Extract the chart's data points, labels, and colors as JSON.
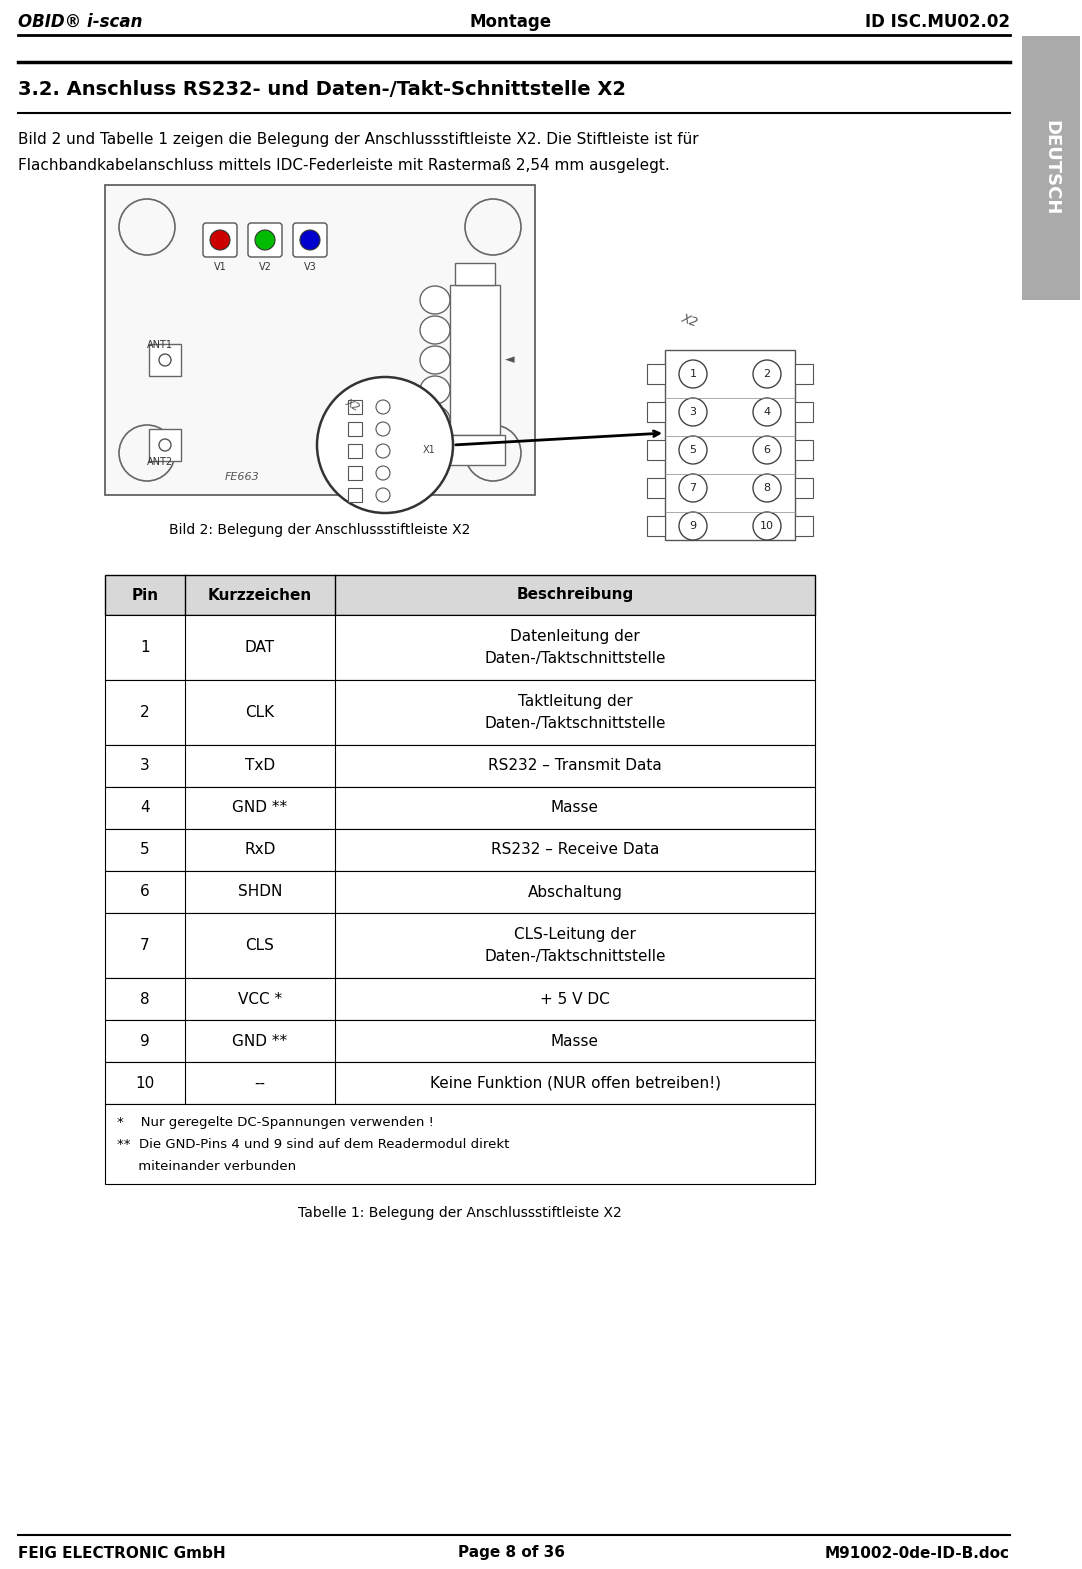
{
  "header_left": "OBID® i-scan",
  "header_center": "Montage",
  "header_right": "ID ISC.MU02.02",
  "footer_left": "FEIG ELECTRONIC GmbH",
  "footer_center": "Page 8 of 36",
  "footer_right": "M91002-0de-ID-B.doc",
  "sidebar_text": "DEUTSCH",
  "sidebar_color": "#aaaaaa",
  "sidebar_text_color": "#ffffff",
  "section_title": "3.2. Anschluss RS232- und Daten-/Takt-Schnittstelle X2",
  "body_text_line1": "Bild 2 und Tabelle 1 zeigen die Belegung der Anschlussstiftleiste X2. Die Stiftleiste ist für",
  "body_text_line2": "Flachbandkabelanschluss mittels IDC-Federleiste mit Rastermaß 2,54 mm ausgelegt.",
  "caption1": "Bild 2: Belegung der Anschlussstiftleiste X2",
  "caption2": "Tabelle 1: Belegung der Anschlussstiftleiste X2",
  "table_header": [
    "Pin",
    "Kurzzeichen",
    "Beschreibung"
  ],
  "table_rows": [
    [
      "1",
      "DAT",
      "Datenleitung der\nDaten-/Taktschnittstelle"
    ],
    [
      "2",
      "CLK",
      "Taktleitung der\nDaten-/Taktschnittstelle"
    ],
    [
      "3",
      "TxD",
      "RS232 – Transmit Data"
    ],
    [
      "4",
      "GND **",
      "Masse"
    ],
    [
      "5",
      "RxD",
      "RS232 – Receive Data"
    ],
    [
      "6",
      "SHDN",
      "Abschaltung"
    ],
    [
      "7",
      "CLS",
      "CLS-Leitung der\nDaten-/Taktschnittstelle"
    ],
    [
      "8",
      "VCC *",
      "+ 5 V DC"
    ],
    [
      "9",
      "GND **",
      "Masse"
    ],
    [
      "10",
      "--",
      "Keine Funktion (NUR offen betreiben!)"
    ]
  ],
  "table_footnote_line1": "*    Nur geregelte DC-Spannungen verwenden !",
  "table_footnote_line2": "**  Die GND-Pins 4 und 9 sind auf dem Readermodul direkt",
  "table_footnote_line3": "     miteinander verbunden",
  "bg_color": "#ffffff",
  "text_color": "#000000",
  "header_font_size": 11,
  "section_font_size": 13,
  "body_font_size": 11,
  "table_header_font_size": 11,
  "table_body_font_size": 11,
  "pcb_bg": "#f8f8f8",
  "pcb_edge": "#555555",
  "led_colors": [
    "#cc0000",
    "#00bb00",
    "#0000cc"
  ],
  "led_labels": [
    "V1",
    "V2",
    "V3"
  ]
}
